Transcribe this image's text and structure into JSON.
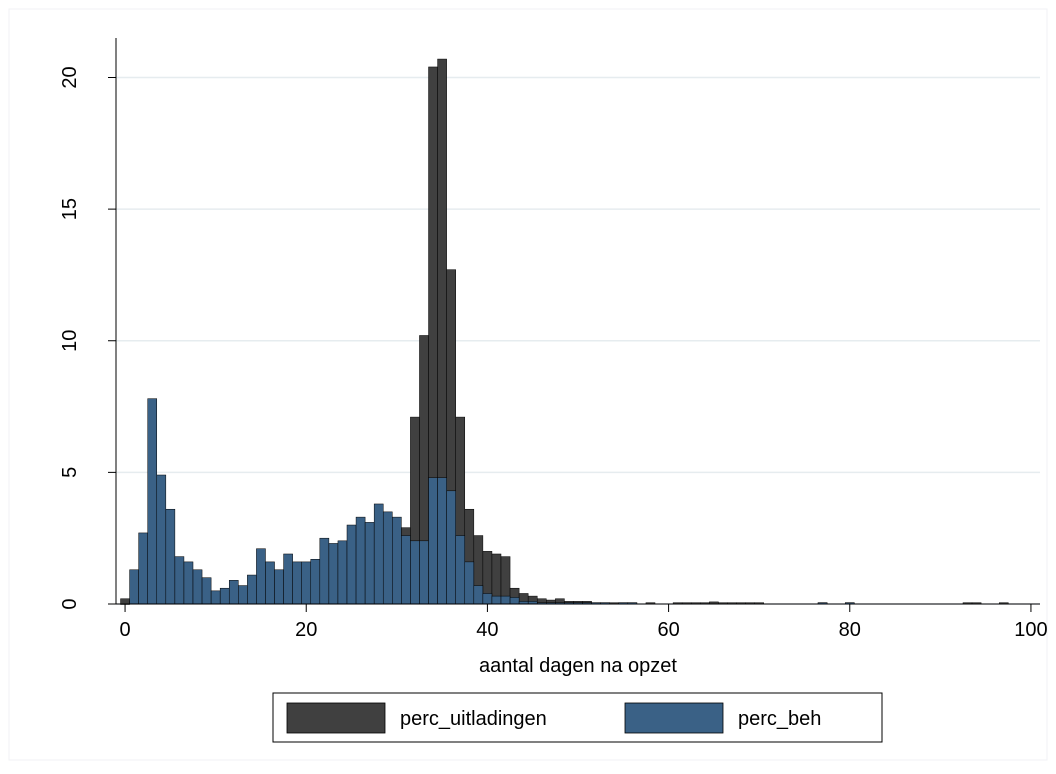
{
  "chart_data": {
    "type": "bar",
    "title": "",
    "xlabel": "aantal dagen na opzet",
    "ylabel": "",
    "xlim": [
      -1,
      101
    ],
    "ylim": [
      0,
      21.5
    ],
    "x_ticks": [
      0,
      20,
      40,
      60,
      80,
      100
    ],
    "y_ticks": [
      0,
      5,
      10,
      15,
      20
    ],
    "grid": true,
    "legend_position": "bottom",
    "bin_width": 1,
    "series": [
      {
        "name": "perc_uitladingen",
        "color": "#404040",
        "x": [
          0,
          1,
          2,
          3,
          4,
          5,
          6,
          7,
          8,
          9,
          10,
          11,
          12,
          13,
          14,
          15,
          16,
          17,
          18,
          19,
          20,
          21,
          22,
          23,
          24,
          25,
          26,
          27,
          28,
          29,
          30,
          31,
          32,
          33,
          34,
          35,
          36,
          37,
          38,
          39,
          40,
          41,
          42,
          43,
          44,
          45,
          46,
          47,
          48,
          49,
          50,
          51,
          52,
          53,
          54,
          55,
          56,
          58,
          61,
          62,
          63,
          64,
          65,
          66,
          67,
          68,
          69,
          70,
          77,
          80,
          93,
          94,
          97
        ],
        "values": [
          0.2,
          0.1,
          0.1,
          0.1,
          0.05,
          0.05,
          0.05,
          0.05,
          0.05,
          0.05,
          0.05,
          0.05,
          0.05,
          0.05,
          0.05,
          0.05,
          0.05,
          0.05,
          0.05,
          0.05,
          0.05,
          0.05,
          0.05,
          0.05,
          0.05,
          0.05,
          0.05,
          0.05,
          0.05,
          0.05,
          0.05,
          2.9,
          7.1,
          10.2,
          20.4,
          20.7,
          12.7,
          7.1,
          3.6,
          2.6,
          2.0,
          1.9,
          1.8,
          0.6,
          0.4,
          0.3,
          0.2,
          0.15,
          0.2,
          0.1,
          0.1,
          0.1,
          0.05,
          0.05,
          0.05,
          0.05,
          0.05,
          0.05,
          0.05,
          0.05,
          0.05,
          0.05,
          0.08,
          0.05,
          0.05,
          0.05,
          0.05,
          0.05,
          0.05,
          0.05,
          0.05,
          0.05,
          0.05
        ]
      },
      {
        "name": "perc_beh",
        "color": "#3a6186",
        "x": [
          0,
          1,
          2,
          3,
          4,
          5,
          6,
          7,
          8,
          9,
          10,
          11,
          12,
          13,
          14,
          15,
          16,
          17,
          18,
          19,
          20,
          21,
          22,
          23,
          24,
          25,
          26,
          27,
          28,
          29,
          30,
          31,
          32,
          33,
          34,
          35,
          36,
          37,
          38,
          39,
          40,
          41,
          42,
          43,
          44,
          45,
          46,
          47,
          48,
          49,
          50,
          51,
          52,
          53,
          55,
          56,
          77,
          80
        ],
        "values": [
          0.0,
          1.3,
          2.7,
          7.8,
          4.9,
          3.6,
          1.8,
          1.6,
          1.3,
          1.0,
          0.5,
          0.6,
          0.9,
          0.7,
          1.1,
          2.1,
          1.6,
          1.3,
          1.9,
          1.6,
          1.6,
          1.7,
          2.5,
          2.3,
          2.4,
          3.0,
          3.3,
          3.1,
          3.8,
          3.5,
          3.3,
          2.6,
          2.4,
          2.4,
          4.8,
          4.8,
          4.3,
          2.6,
          1.6,
          0.7,
          0.4,
          0.3,
          0.3,
          0.25,
          0.1,
          0.1,
          0.05,
          0.05,
          0.05,
          0.05,
          0.05,
          0.05,
          0.05,
          0.05,
          0.05,
          0.05,
          0.05,
          0.05
        ]
      }
    ]
  }
}
